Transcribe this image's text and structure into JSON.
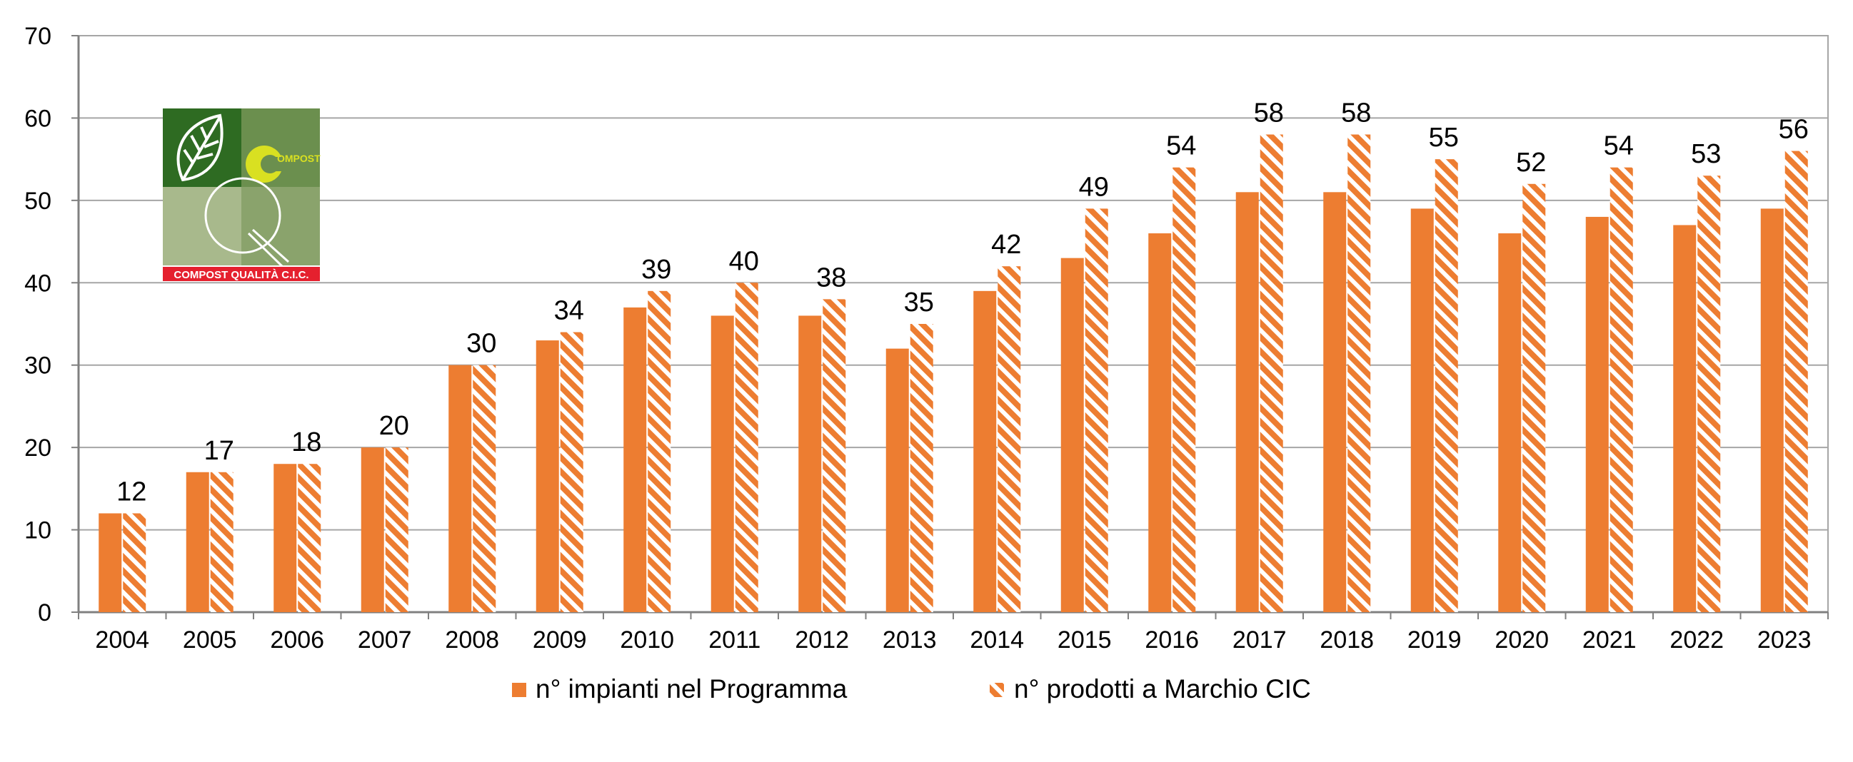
{
  "chart_data": {
    "type": "bar",
    "categories": [
      "2004",
      "2005",
      "2006",
      "2007",
      "2008",
      "2009",
      "2010",
      "2011",
      "2012",
      "2013",
      "2014",
      "2015",
      "2016",
      "2017",
      "2018",
      "2019",
      "2020",
      "2021",
      "2022",
      "2023"
    ],
    "series": [
      {
        "name": "n° impianti nel Programma",
        "values": [
          12,
          17,
          18,
          20,
          30,
          33,
          37,
          36,
          36,
          32,
          39,
          43,
          46,
          51,
          51,
          49,
          46,
          48,
          47,
          49
        ],
        "color": "#ED7D31",
        "pattern": "solid"
      },
      {
        "name": "n° prodotti a Marchio CIC",
        "values": [
          12,
          17,
          18,
          20,
          30,
          34,
          39,
          40,
          38,
          35,
          42,
          49,
          54,
          58,
          58,
          55,
          52,
          54,
          53,
          56
        ],
        "color": "#ED7D31",
        "pattern": "diagonal-stripes"
      }
    ],
    "data_labels": [
      12,
      17,
      18,
      20,
      30,
      34,
      39,
      40,
      38,
      35,
      42,
      49,
      54,
      58,
      58,
      55,
      52,
      54,
      53,
      56
    ],
    "ylim": [
      0,
      70
    ],
    "yticks": [
      0,
      10,
      20,
      30,
      40,
      50,
      60,
      70
    ],
    "grid": true,
    "legend_position": "bottom"
  },
  "logo": {
    "name": "compost-qualita-cic-logo",
    "text": "COMPOST QUALITÀ C.I.C.",
    "mark": "OMPOST",
    "colors": [
      "#2e6b22",
      "#6b8f4e",
      "#a8b98c",
      "#8aa36c",
      "#d9e021",
      "#e5202e"
    ]
  }
}
